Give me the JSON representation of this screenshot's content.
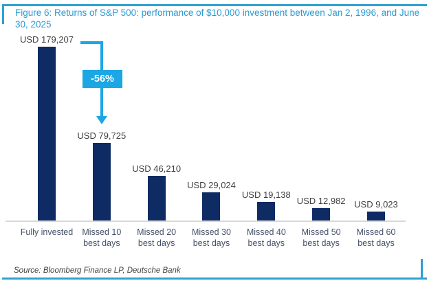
{
  "figure": {
    "title": "Figure 6: Returns of S&P 500: performance of $10,000 investment between Jan 2, 1996, and June 30, 2025",
    "source": "Source: Bloomberg Finance LP, Deutsche Bank"
  },
  "chart_data": {
    "type": "bar",
    "title": "Returns of S&P 500: performance of $10,000 investment between Jan 2, 1996, and June 30, 2025",
    "categories": [
      "Fully invested",
      "Missed 10\nbest days",
      "Missed 20\nbest days",
      "Missed 30\nbest days",
      "Missed 40\nbest days",
      "Missed 50\nbest days",
      "Missed 60\nbest days"
    ],
    "values": [
      179207,
      79725,
      46210,
      29024,
      19138,
      12982,
      9023
    ],
    "value_labels": [
      "USD 179,207",
      "USD 79,725",
      "USD 46,210",
      "USD 29,024",
      "USD 19,138",
      "USD 12,982",
      "USD 9,023"
    ],
    "unit": "USD",
    "xlabel": "",
    "ylabel": "",
    "ylim": [
      0,
      179207
    ],
    "grid": false,
    "legend": false,
    "callout": {
      "label": "-56%",
      "from": "Fully invested",
      "to": "Missed 10 best days"
    }
  },
  "colors": {
    "accent_blue": "#2ea0d2",
    "title_blue": "#2b9ad3",
    "bar_navy": "#0e2b63",
    "callout_cyan": "#1ba6e4",
    "text_dark": "#3f3f3f",
    "axis_text": "#45506a",
    "axis_line": "#d9d9d9"
  }
}
